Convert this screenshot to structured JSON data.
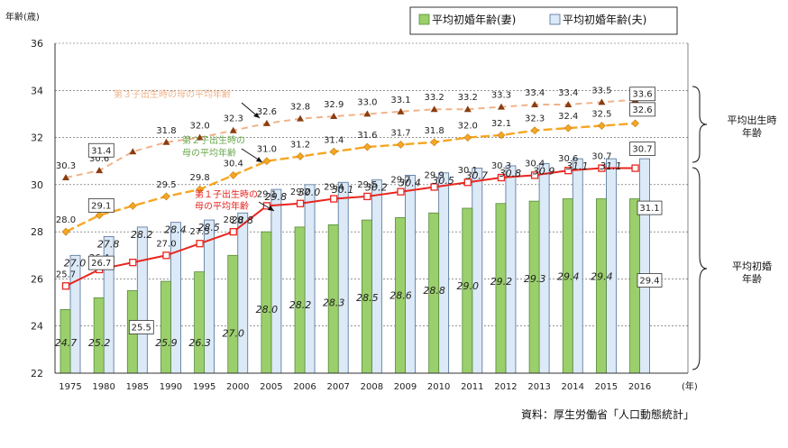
{
  "chart_data": {
    "type": "bar+line",
    "y_axis_label": "年齢(歳)",
    "x_unit_label": "(年)",
    "ylim": [
      22,
      36
    ],
    "y_ticks": [
      22,
      24,
      26,
      28,
      30,
      32,
      34,
      36
    ],
    "categories": [
      "1975",
      "1980",
      "1985",
      "1990",
      "1995",
      "2000",
      "2005",
      "2006",
      "2007",
      "2008",
      "2009",
      "2010",
      "2011",
      "2012",
      "2013",
      "2014",
      "2015",
      "2016"
    ],
    "bar_series": [
      {
        "name": "平均初婚年齢(妻)",
        "color": "#9bcf6b",
        "values": [
          24.7,
          25.2,
          25.5,
          25.9,
          26.3,
          27.0,
          28.0,
          28.2,
          28.3,
          28.5,
          28.6,
          28.8,
          29.0,
          29.2,
          29.3,
          29.4,
          29.4,
          29.4
        ]
      },
      {
        "name": "平均初婚年齢(夫)",
        "color": "#dce9f7",
        "values": [
          27.0,
          27.8,
          28.2,
          28.4,
          28.5,
          28.8,
          29.8,
          30.0,
          30.1,
          30.2,
          30.4,
          30.5,
          30.7,
          30.8,
          30.9,
          31.1,
          31.1,
          31.1
        ]
      }
    ],
    "line_series": [
      {
        "name": "第3子出生時の母の平均年齢",
        "label": "第３子出生時の母の平均年齢",
        "color": "#f0b38a",
        "marker": "triangle",
        "values": [
          30.3,
          30.6,
          31.4,
          31.8,
          32.0,
          32.3,
          32.6,
          32.8,
          32.9,
          33.0,
          33.1,
          33.2,
          33.2,
          33.3,
          33.4,
          33.4,
          33.5,
          33.6
        ]
      },
      {
        "name": "第2子出生時の母の平均年齢",
        "label_lines": [
          "第２子出生時の",
          "母の平均年齢"
        ],
        "color": "#f5a623",
        "marker": "diamond",
        "values": [
          28.0,
          28.7,
          29.1,
          29.5,
          29.8,
          30.4,
          31.0,
          31.2,
          31.4,
          31.6,
          31.7,
          31.8,
          32.0,
          32.1,
          32.3,
          32.4,
          32.5,
          32.6
        ]
      },
      {
        "name": "第1子出生時の母の平均年齢",
        "label_lines": [
          "第１子出生時の",
          "母の平均年齢"
        ],
        "color": "#e8251f",
        "marker": "square",
        "values": [
          25.7,
          26.4,
          26.7,
          27.0,
          27.5,
          28.0,
          29.1,
          29.2,
          29.4,
          29.5,
          29.7,
          29.9,
          30.1,
          30.3,
          30.4,
          30.6,
          30.7,
          30.7
        ]
      }
    ],
    "legend": [
      "平均初婚年齢(妻)",
      "平均初婚年齢(夫)"
    ],
    "brackets": {
      "birth": [
        "平均出生時",
        "年齢"
      ],
      "marriage": [
        "平均初婚",
        "年齢"
      ]
    },
    "source": "資料：厚生労働省「人口動態統計」"
  }
}
